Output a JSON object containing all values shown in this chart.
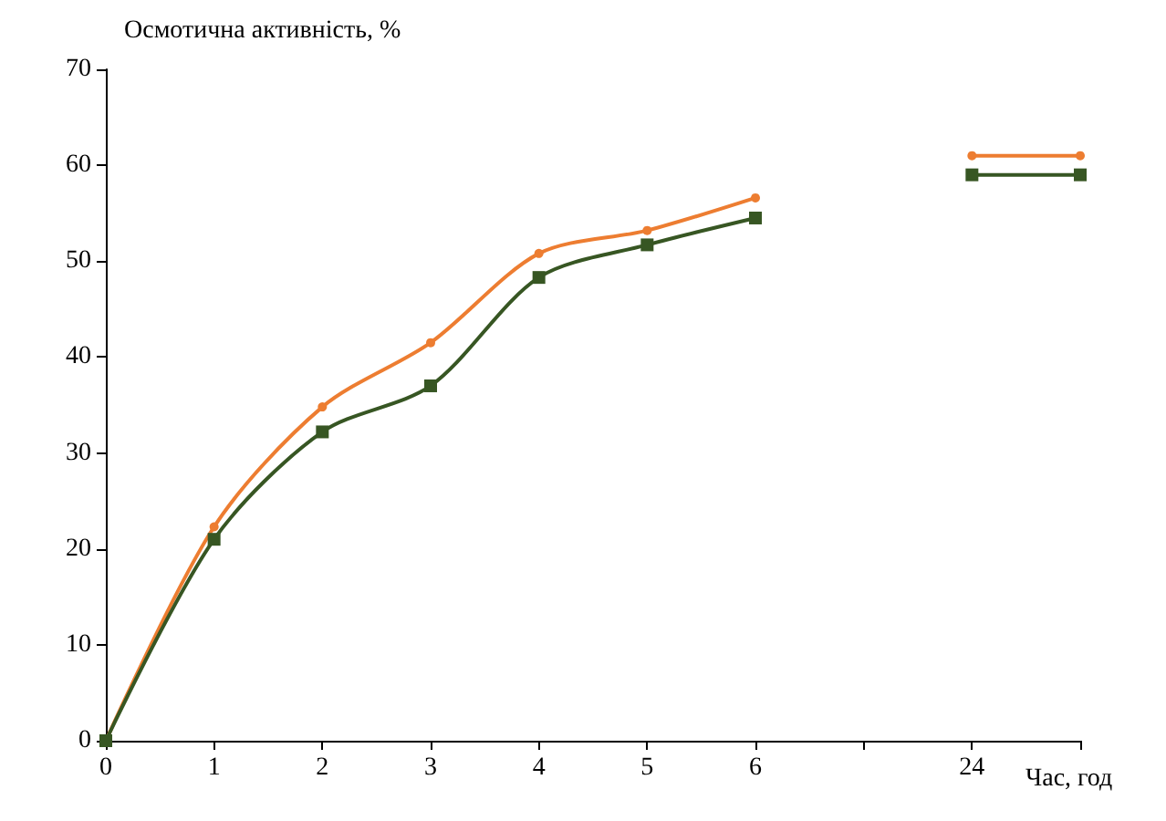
{
  "chart_data": {
    "type": "line",
    "ylabel": "Осмотична активність, %",
    "xlabel": "Час, год",
    "categories": [
      "0",
      "1",
      "2",
      "3",
      "4",
      "5",
      "6",
      null,
      "24",
      null
    ],
    "series": [
      {
        "color": "#ed7d31",
        "marker": "circle",
        "values": [
          0,
          22.3,
          34.8,
          41.5,
          50.8,
          53.2,
          56.6,
          null,
          61,
          61
        ]
      },
      {
        "color": "#375623",
        "marker": "square",
        "values": [
          0,
          21,
          32.2,
          37,
          48.3,
          51.7,
          54.5,
          null,
          59,
          59
        ]
      }
    ],
    "ylim": [
      0,
      70
    ],
    "yticks": [
      0,
      10,
      20,
      30,
      40,
      50,
      60,
      70
    ],
    "grid": false
  }
}
